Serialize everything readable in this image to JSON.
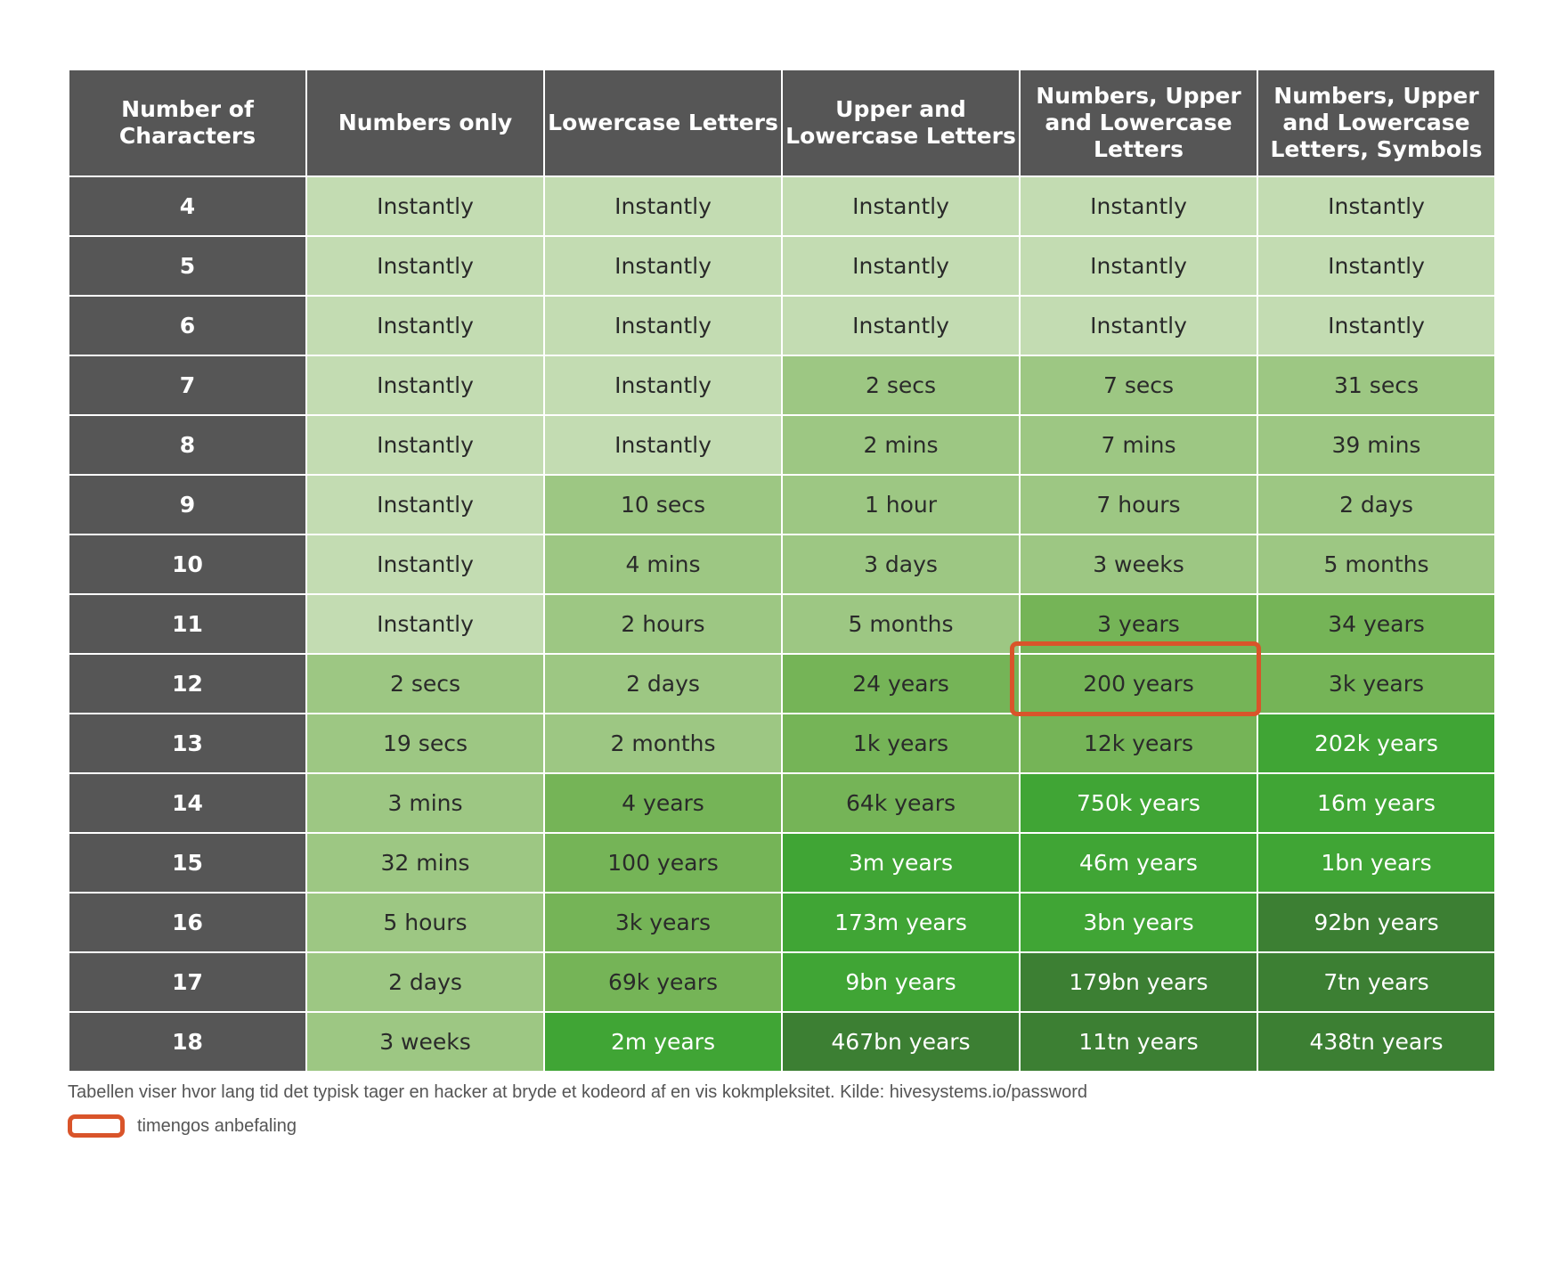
{
  "table": {
    "headers": [
      "Number of Characters",
      "Numbers only",
      "Lowercase Letters",
      "Upper and Lowercase Letters",
      "Numbers, Upper and Lowercase Letters",
      "Numbers, Upper and Lowercase Letters, Symbols"
    ],
    "rows": [
      {
        "chars": "4",
        "cells": [
          {
            "text": "Instantly",
            "level": 1
          },
          {
            "text": "Instantly",
            "level": 1
          },
          {
            "text": "Instantly",
            "level": 1
          },
          {
            "text": "Instantly",
            "level": 1
          },
          {
            "text": "Instantly",
            "level": 1
          }
        ]
      },
      {
        "chars": "5",
        "cells": [
          {
            "text": "Instantly",
            "level": 1
          },
          {
            "text": "Instantly",
            "level": 1
          },
          {
            "text": "Instantly",
            "level": 1
          },
          {
            "text": "Instantly",
            "level": 1
          },
          {
            "text": "Instantly",
            "level": 1
          }
        ]
      },
      {
        "chars": "6",
        "cells": [
          {
            "text": "Instantly",
            "level": 1
          },
          {
            "text": "Instantly",
            "level": 1
          },
          {
            "text": "Instantly",
            "level": 1
          },
          {
            "text": "Instantly",
            "level": 1
          },
          {
            "text": "Instantly",
            "level": 1
          }
        ]
      },
      {
        "chars": "7",
        "cells": [
          {
            "text": "Instantly",
            "level": 1
          },
          {
            "text": "Instantly",
            "level": 1
          },
          {
            "text": "2 secs",
            "level": 2
          },
          {
            "text": "7 secs",
            "level": 2
          },
          {
            "text": "31 secs",
            "level": 2
          }
        ]
      },
      {
        "chars": "8",
        "cells": [
          {
            "text": "Instantly",
            "level": 1
          },
          {
            "text": "Instantly",
            "level": 1
          },
          {
            "text": "2 mins",
            "level": 2
          },
          {
            "text": "7 mins",
            "level": 2
          },
          {
            "text": "39 mins",
            "level": 2
          }
        ]
      },
      {
        "chars": "9",
        "cells": [
          {
            "text": "Instantly",
            "level": 1
          },
          {
            "text": "10 secs",
            "level": 2
          },
          {
            "text": "1 hour",
            "level": 2
          },
          {
            "text": "7 hours",
            "level": 2
          },
          {
            "text": "2 days",
            "level": 2
          }
        ]
      },
      {
        "chars": "10",
        "cells": [
          {
            "text": "Instantly",
            "level": 1
          },
          {
            "text": "4 mins",
            "level": 2
          },
          {
            "text": "3 days",
            "level": 2
          },
          {
            "text": "3 weeks",
            "level": 2
          },
          {
            "text": "5 months",
            "level": 2
          }
        ]
      },
      {
        "chars": "11",
        "cells": [
          {
            "text": "Instantly",
            "level": 1
          },
          {
            "text": "2 hours",
            "level": 2
          },
          {
            "text": "5 months",
            "level": 2
          },
          {
            "text": "3 years",
            "level": 3
          },
          {
            "text": "34 years",
            "level": 3
          }
        ]
      },
      {
        "chars": "12",
        "cells": [
          {
            "text": "2 secs",
            "level": 2
          },
          {
            "text": "2 days",
            "level": 2
          },
          {
            "text": "24 years",
            "level": 3
          },
          {
            "text": "200 years",
            "level": 3
          },
          {
            "text": "3k years",
            "level": 3
          }
        ]
      },
      {
        "chars": "13",
        "cells": [
          {
            "text": "19 secs",
            "level": 2
          },
          {
            "text": "2 months",
            "level": 2
          },
          {
            "text": "1k years",
            "level": 3
          },
          {
            "text": "12k years",
            "level": 3
          },
          {
            "text": "202k years",
            "level": 4
          }
        ]
      },
      {
        "chars": "14",
        "cells": [
          {
            "text": "3 mins",
            "level": 2
          },
          {
            "text": "4 years",
            "level": 3
          },
          {
            "text": "64k years",
            "level": 3
          },
          {
            "text": "750k years",
            "level": 4
          },
          {
            "text": "16m years",
            "level": 4
          }
        ]
      },
      {
        "chars": "15",
        "cells": [
          {
            "text": "32 mins",
            "level": 2
          },
          {
            "text": "100 years",
            "level": 3
          },
          {
            "text": "3m years",
            "level": 4
          },
          {
            "text": "46m years",
            "level": 4
          },
          {
            "text": "1bn years",
            "level": 4
          }
        ]
      },
      {
        "chars": "16",
        "cells": [
          {
            "text": "5 hours",
            "level": 2
          },
          {
            "text": "3k years",
            "level": 3
          },
          {
            "text": "173m years",
            "level": 4
          },
          {
            "text": "3bn years",
            "level": 4
          },
          {
            "text": "92bn years",
            "level": 5
          }
        ]
      },
      {
        "chars": "17",
        "cells": [
          {
            "text": "2 days",
            "level": 2
          },
          {
            "text": "69k years",
            "level": 3
          },
          {
            "text": "9bn years",
            "level": 4
          },
          {
            "text": "179bn years",
            "level": 5
          },
          {
            "text": "7tn years",
            "level": 5
          }
        ]
      },
      {
        "chars": "18",
        "cells": [
          {
            "text": "3 weeks",
            "level": 2
          },
          {
            "text": "2m years",
            "level": 4
          },
          {
            "text": "467bn years",
            "level": 5
          },
          {
            "text": "11tn years",
            "level": 5
          },
          {
            "text": "438tn years",
            "level": 5
          }
        ]
      }
    ]
  },
  "highlight": {
    "row": 8,
    "col": 3,
    "color": "#d9542a"
  },
  "colors": {
    "header": "#565656",
    "level_1": "#c3dcb2",
    "level_2": "#9dc783",
    "level_3": "#75b457",
    "level_4": "#40a535",
    "level_5": "#3c7f33",
    "highlight": "#d9542a"
  },
  "caption": "Tabellen viser hvor lang tid det typisk tager en hacker at bryde et kodeord af en vis kokmpleksitet. Kilde: hivesystems.io/password",
  "legend": {
    "label": "timengos anbefaling"
  }
}
